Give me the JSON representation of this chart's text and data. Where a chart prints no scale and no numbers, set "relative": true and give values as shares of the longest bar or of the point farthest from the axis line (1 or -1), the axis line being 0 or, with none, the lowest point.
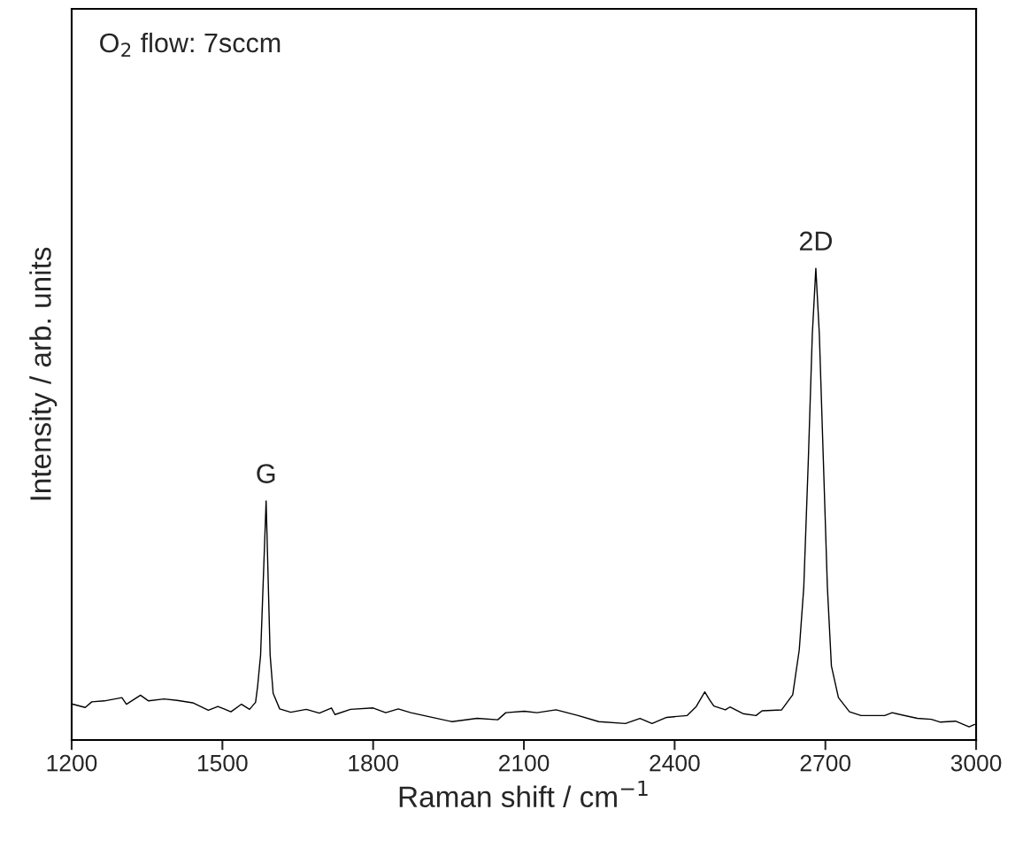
{
  "chart_data": {
    "type": "line",
    "relative": true,
    "xlabel": "Raman shift / cm$^{−1}$",
    "ylabel": "Intensity / arb. units",
    "xlim": [
      1200,
      3000
    ],
    "xticks": [
      1200,
      1500,
      1800,
      2100,
      2400,
      2700,
      3000
    ],
    "tick_labels": "x",
    "grid": false,
    "legend": false,
    "marker": "none",
    "line_style": "solid",
    "annotations": [
      "O$_{2}$ flow: 7sccm",
      {
        "text": "G",
        "x": 1587,
        "y": 0.507
      },
      {
        "text": "2D",
        "x": 2681,
        "y": 1.0
      }
    ],
    "series": [
      {
        "color": "#000000",
        "x": [
          1202,
          1227,
          1240,
          1265,
          1300,
          1309,
          1337,
          1353,
          1384,
          1410,
          1441,
          1472,
          1491,
          1517,
          1538,
          1554,
          1566,
          1570,
          1576,
          1587,
          1595,
          1601,
          1614,
          1636,
          1667,
          1693,
          1717,
          1724,
          1755,
          1800,
          1825,
          1850,
          1875,
          1913,
          1957,
          2007,
          2048,
          2064,
          2101,
          2126,
          2164,
          2208,
          2249,
          2302,
          2331,
          2355,
          2384,
          2425,
          2443,
          2460,
          2469,
          2478,
          2501,
          2510,
          2536,
          2562,
          2574,
          2613,
          2635,
          2648,
          2657,
          2666,
          2674,
          2681,
          2688,
          2696,
          2704,
          2712,
          2726,
          2748,
          2771,
          2818,
          2833,
          2845,
          2883,
          2911,
          2929,
          2959,
          2986,
          2997
        ],
        "values": [
          0.076,
          0.069,
          0.081,
          0.083,
          0.09,
          0.076,
          0.095,
          0.083,
          0.087,
          0.084,
          0.079,
          0.063,
          0.071,
          0.06,
          0.076,
          0.065,
          0.08,
          0.113,
          0.18,
          0.507,
          0.18,
          0.099,
          0.066,
          0.059,
          0.065,
          0.057,
          0.068,
          0.054,
          0.065,
          0.068,
          0.058,
          0.066,
          0.058,
          0.049,
          0.039,
          0.046,
          0.043,
          0.058,
          0.061,
          0.058,
          0.064,
          0.052,
          0.039,
          0.035,
          0.046,
          0.035,
          0.048,
          0.052,
          0.071,
          0.102,
          0.086,
          0.072,
          0.064,
          0.07,
          0.056,
          0.052,
          0.062,
          0.064,
          0.096,
          0.191,
          0.324,
          0.592,
          0.86,
          1.0,
          0.86,
          0.592,
          0.324,
          0.157,
          0.09,
          0.06,
          0.052,
          0.052,
          0.058,
          0.055,
          0.046,
          0.044,
          0.038,
          0.04,
          0.028,
          0.033
        ]
      }
    ]
  }
}
